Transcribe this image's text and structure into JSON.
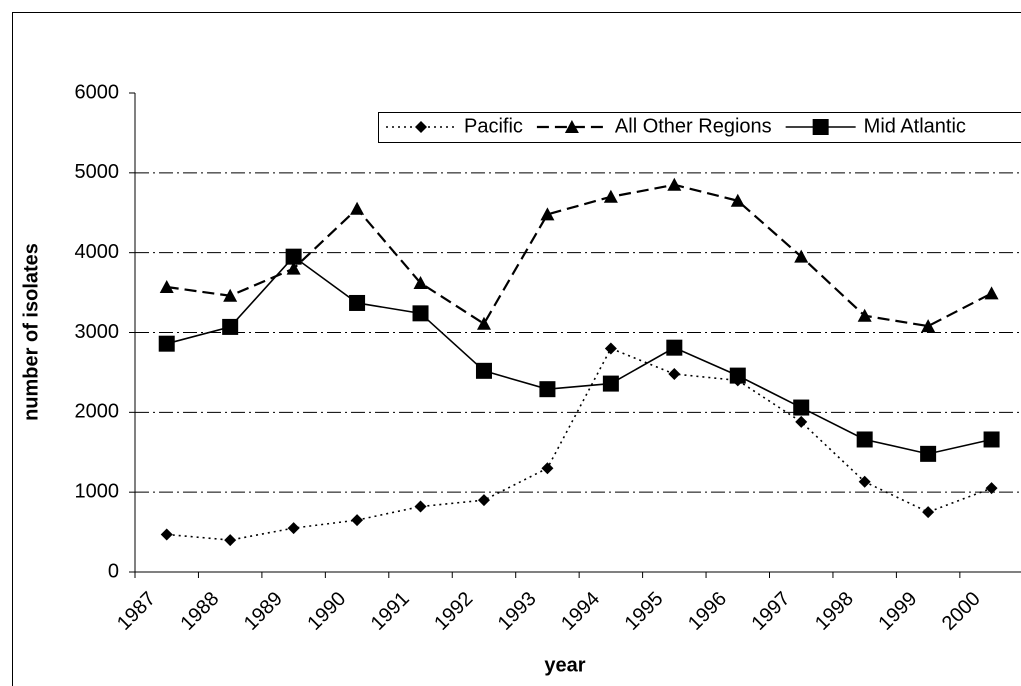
{
  "chart_data": {
    "type": "line",
    "x_label": "year",
    "y_label": "number of isolates",
    "categories": [
      "1987",
      "1988",
      "1989",
      "1990",
      "1991",
      "1992",
      "1993",
      "1994",
      "1995",
      "1996",
      "1997",
      "1998",
      "1999",
      "2000"
    ],
    "series": [
      {
        "name": "Pacific",
        "color": "#000000",
        "values": [
          470,
          400,
          550,
          650,
          820,
          900,
          1300,
          2800,
          2480,
          2400,
          1880,
          1130,
          750,
          1050
        ]
      },
      {
        "name": "All Other Regions",
        "color": "#000000",
        "values": [
          3570,
          3460,
          3800,
          4550,
          3620,
          3110,
          4480,
          4700,
          4850,
          4650,
          3950,
          3210,
          3080,
          3490
        ]
      },
      {
        "name": "Mid Atlantic",
        "color": "#000000",
        "values": [
          2860,
          3070,
          3950,
          3370,
          3240,
          2520,
          2290,
          2360,
          2810,
          2460,
          2060,
          1660,
          1480,
          1660
        ]
      }
    ],
    "ylim": [
      0,
      6000
    ],
    "yticks": [
      0,
      1000,
      2000,
      3000,
      4000,
      5000,
      6000
    ],
    "grid": true,
    "legend": "top"
  }
}
